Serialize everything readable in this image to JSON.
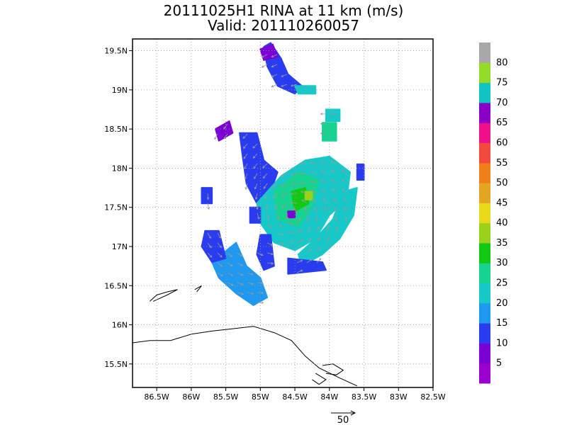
{
  "title": "20111025H1 RINA at 11 km (m/s)",
  "subtitle": "Valid: 201110260057",
  "chart_data": {
    "type": "heatmap",
    "title": "20111025H1 RINA at 11 km (m/s)",
    "subtitle": "Valid: 201110260057",
    "x_ticks": [
      "86.5W",
      "86W",
      "85.5W",
      "85W",
      "84.5W",
      "84W",
      "83.5W",
      "83W",
      "82.5W"
    ],
    "x_tick_values": [
      -86.5,
      -86.0,
      -85.5,
      -85.0,
      -84.5,
      -84.0,
      -83.5,
      -83.0,
      -82.5
    ],
    "y_ticks": [
      "15.5N",
      "16N",
      "16.5N",
      "17N",
      "17.5N",
      "18N",
      "18.5N",
      "19N",
      "19.5N"
    ],
    "y_tick_values": [
      15.5,
      16.0,
      16.5,
      17.0,
      17.5,
      18.0,
      18.5,
      19.0,
      19.5
    ],
    "xlim": [
      -86.85,
      -82.5
    ],
    "ylim": [
      15.2,
      19.65
    ],
    "grid": true,
    "colorbar": {
      "labels": [
        "5",
        "10",
        "15",
        "20",
        "25",
        "30",
        "35",
        "40",
        "45",
        "50",
        "55",
        "60",
        "65",
        "70",
        "75",
        "80"
      ],
      "bands": [
        {
          "min": 0,
          "max": 5,
          "color": "#9900cc"
        },
        {
          "min": 5,
          "max": 10,
          "color": "#7a00d6"
        },
        {
          "min": 10,
          "max": 15,
          "color": "#2a3cf0"
        },
        {
          "min": 15,
          "max": 20,
          "color": "#1f98f0"
        },
        {
          "min": 20,
          "max": 25,
          "color": "#17c8c8"
        },
        {
          "min": 25,
          "max": 30,
          "color": "#16d38f"
        },
        {
          "min": 30,
          "max": 35,
          "color": "#13c813"
        },
        {
          "min": 35,
          "max": 40,
          "color": "#9ad11a"
        },
        {
          "min": 40,
          "max": 45,
          "color": "#e8d81a"
        },
        {
          "min": 45,
          "max": 50,
          "color": "#e3a522"
        },
        {
          "min": 50,
          "max": 55,
          "color": "#ef7f1a"
        },
        {
          "min": 55,
          "max": 60,
          "color": "#f24a3c"
        },
        {
          "min": 60,
          "max": 65,
          "color": "#f0108c"
        },
        {
          "min": 65,
          "max": 70,
          "color": "#8a00c8"
        },
        {
          "min": 70,
          "max": 75,
          "color": "#10c4c4"
        },
        {
          "min": 75,
          "max": 80,
          "color": "#92dc28"
        },
        {
          "min": 80,
          "max": 85,
          "color": "#a8a8a8"
        }
      ]
    },
    "regions": [
      {
        "name": "north-band",
        "color": "#2a3cf0",
        "points": [
          [
            -84.95,
            19.55
          ],
          [
            -84.85,
            19.6
          ],
          [
            -84.7,
            19.4
          ],
          [
            -84.6,
            19.2
          ],
          [
            -84.4,
            19.05
          ],
          [
            -84.5,
            18.95
          ],
          [
            -84.75,
            19.05
          ],
          [
            -84.9,
            19.3
          ]
        ]
      },
      {
        "name": "north-band-tip",
        "color": "#7a00d6",
        "points": [
          [
            -85.0,
            19.52
          ],
          [
            -84.82,
            19.58
          ],
          [
            -84.75,
            19.42
          ],
          [
            -84.95,
            19.38
          ]
        ]
      },
      {
        "name": "north-band-end",
        "color": "#17c8c8",
        "points": [
          [
            -84.5,
            19.05
          ],
          [
            -84.2,
            19.05
          ],
          [
            -84.2,
            18.95
          ],
          [
            -84.45,
            18.95
          ]
        ]
      },
      {
        "name": "ne-patch-1",
        "color": "#17c8c8",
        "points": [
          [
            -84.05,
            18.75
          ],
          [
            -83.85,
            18.75
          ],
          [
            -83.85,
            18.6
          ],
          [
            -84.05,
            18.6
          ]
        ]
      },
      {
        "name": "ne-patch-2",
        "color": "#16d38f",
        "points": [
          [
            -84.1,
            18.58
          ],
          [
            -83.9,
            18.58
          ],
          [
            -83.9,
            18.35
          ],
          [
            -84.1,
            18.35
          ]
        ]
      },
      {
        "name": "west-arc",
        "color": "#2a3cf0",
        "points": [
          [
            -85.3,
            18.45
          ],
          [
            -85.05,
            18.45
          ],
          [
            -84.95,
            18.1
          ],
          [
            -84.75,
            17.95
          ],
          [
            -84.85,
            17.7
          ],
          [
            -85.05,
            17.55
          ],
          [
            -85.2,
            17.8
          ],
          [
            -85.25,
            18.1
          ]
        ]
      },
      {
        "name": "nw-dot",
        "color": "#7a00d6",
        "points": [
          [
            -85.65,
            18.5
          ],
          [
            -85.45,
            18.6
          ],
          [
            -85.4,
            18.45
          ],
          [
            -85.6,
            18.35
          ]
        ]
      },
      {
        "name": "west-small",
        "color": "#2a3cf0",
        "points": [
          [
            -85.85,
            17.75
          ],
          [
            -85.7,
            17.75
          ],
          [
            -85.7,
            17.55
          ],
          [
            -85.85,
            17.55
          ]
        ]
      },
      {
        "name": "core-ring",
        "color": "#17c8c8",
        "points": [
          [
            -85.05,
            17.55
          ],
          [
            -84.7,
            17.9
          ],
          [
            -84.35,
            18.1
          ],
          [
            -84.0,
            18.15
          ],
          [
            -83.7,
            17.95
          ],
          [
            -83.75,
            17.6
          ],
          [
            -84.0,
            17.4
          ],
          [
            -84.2,
            17.1
          ],
          [
            -84.5,
            16.95
          ],
          [
            -84.8,
            17.05
          ],
          [
            -85.0,
            17.3
          ]
        ]
      },
      {
        "name": "core-green",
        "color": "#16d38f",
        "points": [
          [
            -84.8,
            17.7
          ],
          [
            -84.45,
            17.95
          ],
          [
            -84.15,
            17.85
          ],
          [
            -84.25,
            17.5
          ],
          [
            -84.45,
            17.25
          ],
          [
            -84.75,
            17.35
          ]
        ]
      },
      {
        "name": "core-bright",
        "color": "#13c813",
        "points": [
          [
            -84.55,
            17.7
          ],
          [
            -84.35,
            17.75
          ],
          [
            -84.3,
            17.55
          ],
          [
            -84.5,
            17.45
          ]
        ]
      },
      {
        "name": "core-lime",
        "color": "#9ad11a",
        "points": [
          [
            -84.35,
            17.7
          ],
          [
            -84.25,
            17.7
          ],
          [
            -84.25,
            17.6
          ],
          [
            -84.35,
            17.6
          ]
        ]
      },
      {
        "name": "eye",
        "color": "#7a00d6",
        "points": [
          [
            -84.6,
            17.45
          ],
          [
            -84.5,
            17.45
          ],
          [
            -84.5,
            17.37
          ],
          [
            -84.6,
            17.37
          ]
        ]
      },
      {
        "name": "east-band",
        "color": "#17c8c8",
        "points": [
          [
            -83.8,
            17.7
          ],
          [
            -83.6,
            17.75
          ],
          [
            -83.65,
            17.4
          ],
          [
            -83.85,
            17.1
          ],
          [
            -84.1,
            16.9
          ],
          [
            -84.4,
            16.75
          ],
          [
            -84.45,
            16.9
          ],
          [
            -84.2,
            17.1
          ],
          [
            -83.95,
            17.35
          ]
        ]
      },
      {
        "name": "east-band-blue",
        "color": "#2a3cf0",
        "points": [
          [
            -84.6,
            16.85
          ],
          [
            -84.1,
            16.8
          ],
          [
            -84.05,
            16.7
          ],
          [
            -84.6,
            16.65
          ]
        ]
      },
      {
        "name": "ne-blue",
        "color": "#2a3cf0",
        "points": [
          [
            -83.6,
            18.05
          ],
          [
            -83.5,
            18.05
          ],
          [
            -83.5,
            17.85
          ],
          [
            -83.6,
            17.85
          ]
        ]
      },
      {
        "name": "south-arc",
        "color": "#1f98f0",
        "points": [
          [
            -85.35,
            17.05
          ],
          [
            -85.2,
            16.75
          ],
          [
            -85.0,
            16.6
          ],
          [
            -84.9,
            16.35
          ],
          [
            -85.1,
            16.25
          ],
          [
            -85.35,
            16.4
          ],
          [
            -85.6,
            16.6
          ],
          [
            -85.7,
            16.8
          ]
        ]
      },
      {
        "name": "south-arc-blue",
        "color": "#2a3cf0",
        "points": [
          [
            -85.8,
            17.2
          ],
          [
            -85.6,
            17.2
          ],
          [
            -85.5,
            16.85
          ],
          [
            -85.7,
            16.8
          ],
          [
            -85.85,
            17.0
          ]
        ]
      },
      {
        "name": "south-mid",
        "color": "#2a3cf0",
        "points": [
          [
            -85.0,
            17.15
          ],
          [
            -84.85,
            17.15
          ],
          [
            -84.8,
            16.75
          ],
          [
            -84.95,
            16.7
          ],
          [
            -85.05,
            16.9
          ]
        ]
      },
      {
        "name": "west-core",
        "color": "#2a3cf0",
        "points": [
          [
            -85.15,
            17.5
          ],
          [
            -85.0,
            17.5
          ],
          [
            -85.0,
            17.3
          ],
          [
            -85.15,
            17.3
          ]
        ]
      }
    ],
    "coastlines": [
      {
        "name": "honduras-coast",
        "points": [
          [
            -86.85,
            15.77
          ],
          [
            -86.6,
            15.8
          ],
          [
            -86.3,
            15.8
          ],
          [
            -86.0,
            15.88
          ],
          [
            -85.7,
            15.92
          ],
          [
            -85.4,
            15.95
          ],
          [
            -85.1,
            15.98
          ],
          [
            -84.8,
            15.9
          ],
          [
            -84.55,
            15.8
          ],
          [
            -84.35,
            15.6
          ],
          [
            -84.15,
            15.45
          ],
          [
            -83.85,
            15.32
          ],
          [
            -83.6,
            15.22
          ]
        ]
      },
      {
        "name": "utila-roatan",
        "points": [
          [
            -86.6,
            16.3
          ],
          [
            -86.5,
            16.38
          ],
          [
            -86.35,
            16.42
          ],
          [
            -86.2,
            16.45
          ],
          [
            -86.35,
            16.38
          ],
          [
            -86.55,
            16.3
          ]
        ]
      },
      {
        "name": "guanaja",
        "points": [
          [
            -85.95,
            16.45
          ],
          [
            -85.85,
            16.5
          ],
          [
            -85.92,
            16.42
          ]
        ]
      },
      {
        "name": "caratasca-lagoon",
        "points": [
          [
            -84.1,
            15.48
          ],
          [
            -83.95,
            15.5
          ],
          [
            -83.8,
            15.42
          ],
          [
            -83.9,
            15.36
          ],
          [
            -84.05,
            15.38
          ]
        ]
      },
      {
        "name": "lagoon-2",
        "points": [
          [
            -84.2,
            15.38
          ],
          [
            -84.05,
            15.3
          ],
          [
            -84.15,
            15.24
          ],
          [
            -84.25,
            15.3
          ]
        ]
      }
    ],
    "wind_arrow_scale": "50"
  }
}
